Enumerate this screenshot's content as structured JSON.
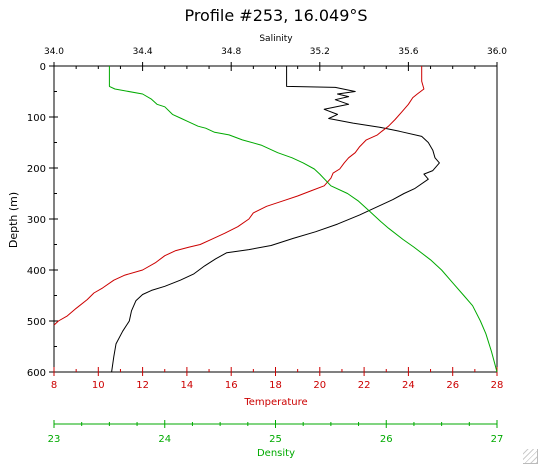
{
  "chart_data": {
    "type": "line",
    "title": "Profile #253, 16.049°S",
    "ylabel": "Depth (m)",
    "ylim": [
      0,
      600
    ],
    "y_ticks": [
      "0",
      "100",
      "200",
      "300",
      "400",
      "500",
      "600"
    ],
    "axes": {
      "salinity": {
        "label": "Salinity",
        "range": [
          34.0,
          36.0
        ],
        "ticks": [
          "34.0",
          "34.4",
          "34.8",
          "35.2",
          "35.6",
          "36.0"
        ],
        "color": "#000000"
      },
      "temperature": {
        "label": "Temperature",
        "range": [
          8,
          28
        ],
        "ticks": [
          "8",
          "10",
          "12",
          "14",
          "16",
          "18",
          "20",
          "22",
          "24",
          "26",
          "28"
        ],
        "color": "#cc0000"
      },
      "density": {
        "label": "Density",
        "range": [
          23,
          27
        ],
        "ticks": [
          "23",
          "24",
          "25",
          "26",
          "27"
        ],
        "color": "#00aa00"
      }
    },
    "series": [
      {
        "name": "Salinity",
        "axis": "salinity",
        "color": "#000000",
        "points": [
          [
            35.05,
            0
          ],
          [
            35.05,
            40
          ],
          [
            35.27,
            42
          ],
          [
            35.36,
            50
          ],
          [
            35.28,
            55
          ],
          [
            35.33,
            60
          ],
          [
            35.27,
            66
          ],
          [
            35.33,
            75
          ],
          [
            35.22,
            85
          ],
          [
            35.28,
            95
          ],
          [
            35.24,
            103
          ],
          [
            35.35,
            112
          ],
          [
            35.47,
            120
          ],
          [
            35.56,
            128
          ],
          [
            35.66,
            138
          ],
          [
            35.69,
            150
          ],
          [
            35.71,
            165
          ],
          [
            35.72,
            180
          ],
          [
            35.74,
            190
          ],
          [
            35.71,
            205
          ],
          [
            35.67,
            212
          ],
          [
            35.69,
            222
          ],
          [
            35.63,
            240
          ],
          [
            35.58,
            250
          ],
          [
            35.53,
            262
          ],
          [
            35.48,
            272
          ],
          [
            35.43,
            282
          ],
          [
            35.38,
            292
          ],
          [
            35.28,
            310
          ],
          [
            35.18,
            325
          ],
          [
            35.08,
            338
          ],
          [
            34.98,
            352
          ],
          [
            34.88,
            360
          ],
          [
            34.78,
            366
          ],
          [
            34.73,
            378
          ],
          [
            34.68,
            392
          ],
          [
            34.63,
            408
          ],
          [
            34.57,
            420
          ],
          [
            34.5,
            432
          ],
          [
            34.44,
            440
          ],
          [
            34.4,
            448
          ],
          [
            34.37,
            460
          ],
          [
            34.35,
            480
          ],
          [
            34.34,
            500
          ],
          [
            34.31,
            520
          ],
          [
            34.28,
            545
          ],
          [
            34.27,
            570
          ],
          [
            34.26,
            600
          ]
        ]
      },
      {
        "name": "Temperature",
        "axis": "temperature",
        "color": "#cc0000",
        "points": [
          [
            24.6,
            0
          ],
          [
            24.6,
            30
          ],
          [
            24.7,
            45
          ],
          [
            24.4,
            55
          ],
          [
            24.2,
            62
          ],
          [
            24.0,
            75
          ],
          [
            23.7,
            90
          ],
          [
            23.4,
            105
          ],
          [
            23.1,
            118
          ],
          [
            22.8,
            128
          ],
          [
            22.6,
            135
          ],
          [
            22.1,
            145
          ],
          [
            21.8,
            158
          ],
          [
            21.6,
            170
          ],
          [
            21.3,
            180
          ],
          [
            21.1,
            190
          ],
          [
            20.9,
            202
          ],
          [
            20.6,
            210
          ],
          [
            20.5,
            220
          ],
          [
            20.2,
            235
          ],
          [
            19.6,
            245
          ],
          [
            19.0,
            255
          ],
          [
            18.3,
            265
          ],
          [
            17.6,
            275
          ],
          [
            17.0,
            288
          ],
          [
            16.8,
            300
          ],
          [
            16.3,
            315
          ],
          [
            15.7,
            328
          ],
          [
            15.1,
            340
          ],
          [
            14.6,
            350
          ],
          [
            14.1,
            355
          ],
          [
            13.5,
            362
          ],
          [
            13.0,
            372
          ],
          [
            12.6,
            385
          ],
          [
            12.0,
            400
          ],
          [
            11.2,
            410
          ],
          [
            10.7,
            420
          ],
          [
            10.2,
            435
          ],
          [
            9.8,
            445
          ],
          [
            9.5,
            458
          ],
          [
            9.0,
            475
          ],
          [
            8.6,
            490
          ],
          [
            8.2,
            500
          ],
          [
            8.0,
            508
          ]
        ]
      },
      {
        "name": "Density",
        "axis": "density",
        "color": "#00aa00",
        "points": [
          [
            23.5,
            0
          ],
          [
            23.5,
            40
          ],
          [
            23.55,
            45
          ],
          [
            23.8,
            55
          ],
          [
            23.88,
            65
          ],
          [
            23.93,
            75
          ],
          [
            24.0,
            80
          ],
          [
            24.07,
            95
          ],
          [
            24.15,
            103
          ],
          [
            24.2,
            108
          ],
          [
            24.3,
            118
          ],
          [
            24.37,
            122
          ],
          [
            24.45,
            130
          ],
          [
            24.58,
            135
          ],
          [
            24.7,
            145
          ],
          [
            24.87,
            155
          ],
          [
            25.02,
            170
          ],
          [
            25.15,
            180
          ],
          [
            25.25,
            190
          ],
          [
            25.35,
            202
          ],
          [
            25.4,
            212
          ],
          [
            25.5,
            235
          ],
          [
            25.65,
            250
          ],
          [
            25.75,
            265
          ],
          [
            25.85,
            285
          ],
          [
            25.95,
            305
          ],
          [
            26.02,
            318
          ],
          [
            26.15,
            340
          ],
          [
            26.25,
            355
          ],
          [
            26.4,
            380
          ],
          [
            26.5,
            400
          ],
          [
            26.6,
            425
          ],
          [
            26.7,
            450
          ],
          [
            26.78,
            470
          ],
          [
            26.85,
            500
          ],
          [
            26.9,
            525
          ],
          [
            26.95,
            560
          ],
          [
            27.0,
            600
          ]
        ]
      }
    ]
  }
}
